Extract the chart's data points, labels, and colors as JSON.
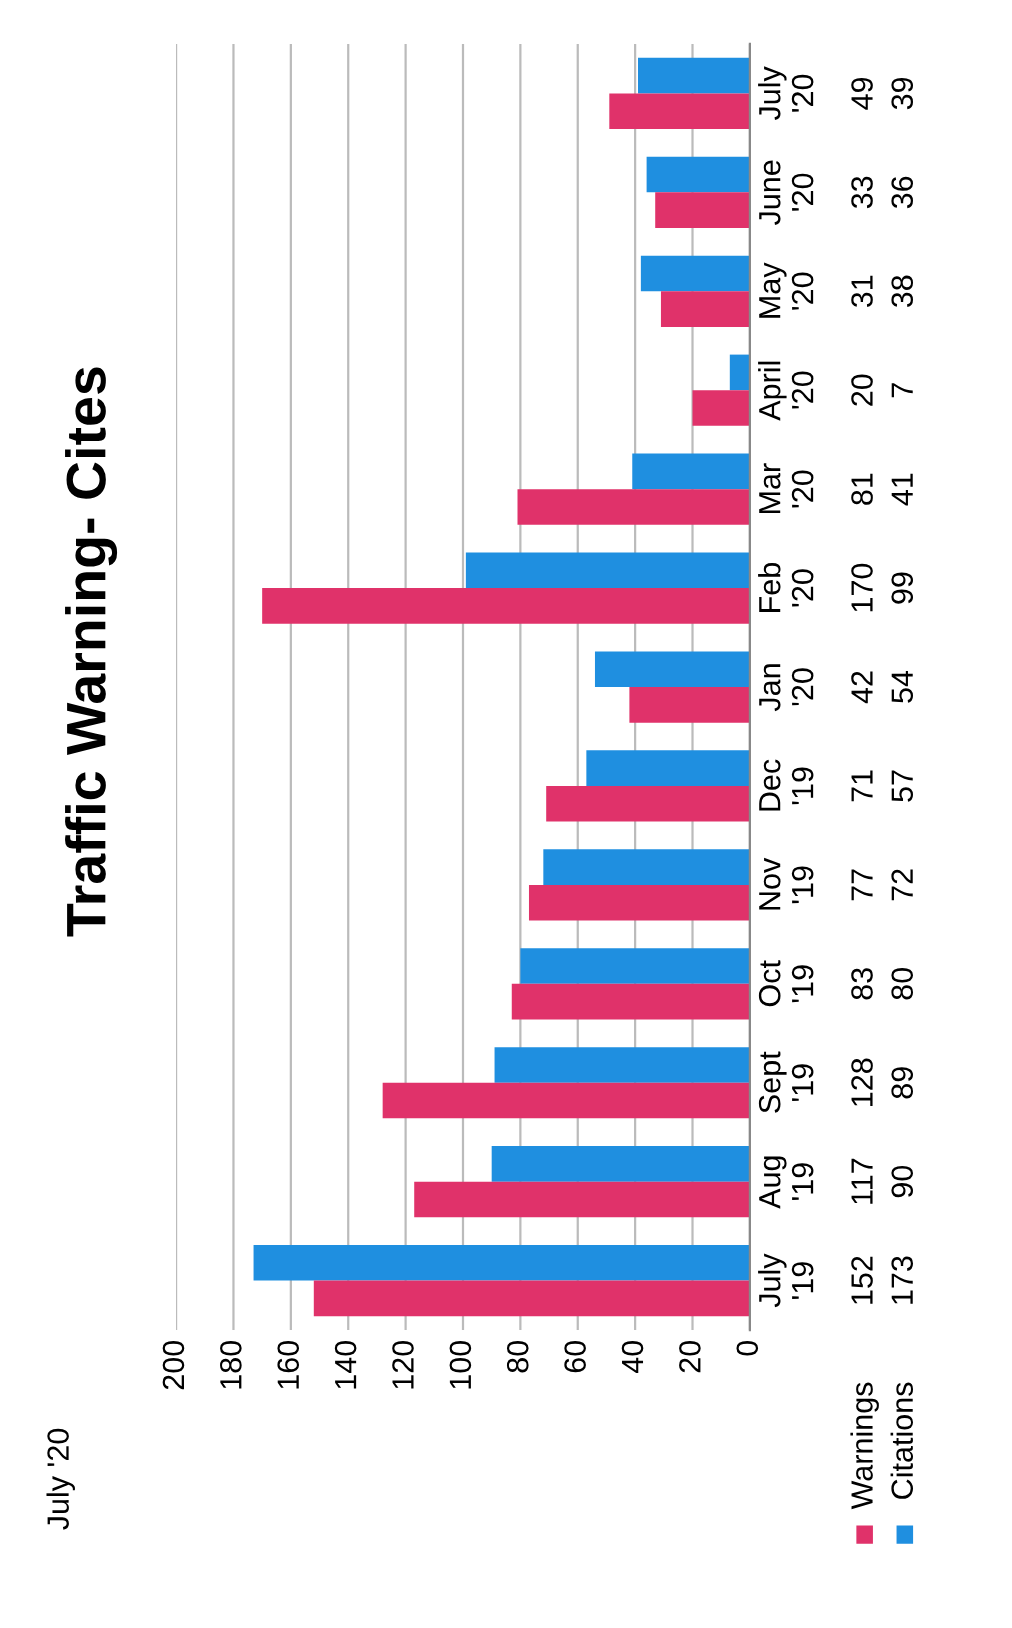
{
  "chart_data": {
    "type": "bar",
    "orientation": "horizontal",
    "title": "Traffic Warning- Cites",
    "categories": [
      "July\n'20",
      "June\n'20",
      "May\n'20",
      "April\n'20",
      "Mar\n'20",
      "Feb\n'20",
      "Jan\n'20",
      "Dec\n'19",
      "Nov\n'19",
      "Oct\n'19",
      "Sept\n'19",
      "Aug\n'19",
      "July\n'19"
    ],
    "series": [
      {
        "name": "Citations",
        "color": "#1f8fe0",
        "values": [
          39,
          36,
          38,
          7,
          41,
          99,
          54,
          57,
          72,
          80,
          89,
          90,
          173
        ]
      },
      {
        "name": "Warnings",
        "color": "#e0326a",
        "values": [
          49,
          33,
          31,
          20,
          81,
          170,
          42,
          71,
          77,
          83,
          128,
          117,
          152
        ]
      }
    ],
    "xlim": [
      200,
      0
    ],
    "xticks": [
      0,
      20,
      40,
      60,
      80,
      100,
      120,
      140,
      160,
      180,
      200
    ],
    "grid": "x",
    "legend": "bottom right",
    "data_labels": true,
    "annotations": [
      "July '20"
    ]
  }
}
